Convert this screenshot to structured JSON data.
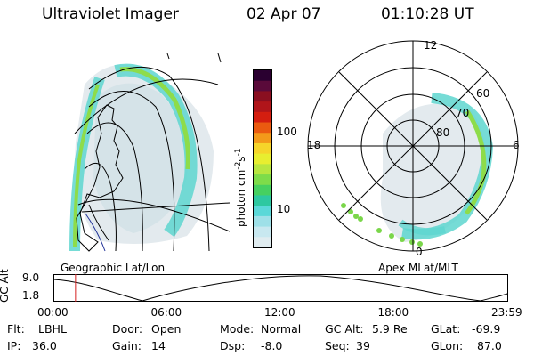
{
  "header": {
    "title": "Ultraviolet Imager",
    "date": "02 Apr 07",
    "time": "01:10:28 UT"
  },
  "colorbar": {
    "title": "photon cm",
    "exp1": "-2",
    "mid": "s",
    "exp2": "-1",
    "tick_100": "100",
    "tick_10": "10",
    "colors": [
      "#2a0030",
      "#5a0a3a",
      "#8a0f20",
      "#b0151a",
      "#d41e10",
      "#ea5a10",
      "#f39a1a",
      "#f6d52a",
      "#e8ee30",
      "#b8e640",
      "#7edc4a",
      "#46d060",
      "#2ec8a0",
      "#5ad8d8",
      "#9ee0e8",
      "#c8e8f0",
      "#e0ecf0"
    ]
  },
  "left_map": {
    "caption": "Geographic Lat/Lon"
  },
  "right_map": {
    "caption": "Apex MLat/MLT",
    "mlt_top": "12",
    "mlt_left": "18",
    "mlt_right": "6",
    "mlt_bottom": "0",
    "lat_60": "60",
    "lat_70": "70",
    "lat_80": "80"
  },
  "altitude_plot": {
    "axis_label": "GC Alt",
    "y_max": "9.0",
    "y_min": "1.8",
    "x_ticks": [
      "00:00",
      "06:00",
      "12:00",
      "18:00",
      "23:59"
    ],
    "marker_hour": 1.17
  },
  "info": {
    "flt_label": "Flt:",
    "flt_value": "LBHL",
    "ip_label": "IP:",
    "ip_value": "36.0",
    "door_label": "Door:",
    "door_value": "Open",
    "gain_label": "Gain:",
    "gain_value": "14",
    "mode_label": "Mode:",
    "mode_value": "Normal",
    "dsp_label": "Dsp:",
    "dsp_value": "-8.0",
    "gcalt_label": "GC Alt:",
    "gcalt_value": "5.9 Re",
    "seq_label": "Seq:",
    "seq_value": "39",
    "glat_label": "GLat:",
    "glat_value": "-69.9",
    "glon_label": "GLon:",
    "glon_value": "87.0"
  }
}
